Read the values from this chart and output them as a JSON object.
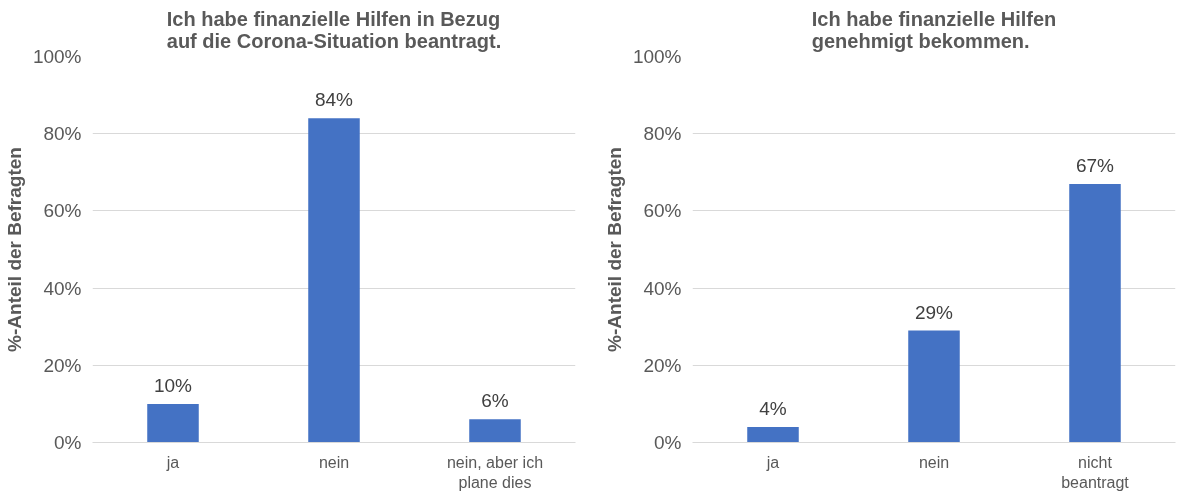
{
  "chart_data": [
    {
      "type": "bar",
      "title": "Ich habe finanzielle Hilfen in Bezug\nauf die Corona-Situation beantragt.",
      "ylabel": "%-Anteil der Befragten",
      "categories": [
        "ja",
        "nein",
        "nein, aber ich\nplane dies"
      ],
      "values": [
        10,
        84,
        6
      ],
      "value_labels": [
        "10%",
        "84%",
        "6%"
      ],
      "color": "#4472c4",
      "ylim": [
        0,
        100
      ],
      "yticks": [
        {
          "value": 0,
          "label": "0%"
        },
        {
          "value": 20,
          "label": "20%"
        },
        {
          "value": 40,
          "label": "40%"
        },
        {
          "value": 60,
          "label": "60%"
        },
        {
          "value": 80,
          "label": "80%"
        },
        {
          "value": 100,
          "label": "100%"
        }
      ],
      "grid": "y"
    },
    {
      "type": "bar",
      "title": "Ich habe finanzielle Hilfen\ngenehmigt bekommen.",
      "ylabel": "%-Anteil der Befragten",
      "categories": [
        "ja",
        "nein",
        "nicht\nbeantragt"
      ],
      "values": [
        4,
        29,
        67
      ],
      "value_labels": [
        "4%",
        "29%",
        "67%"
      ],
      "color": "#4472c4",
      "ylim": [
        0,
        100
      ],
      "yticks": [
        {
          "value": 0,
          "label": "0%"
        },
        {
          "value": 20,
          "label": "20%"
        },
        {
          "value": 40,
          "label": "40%"
        },
        {
          "value": 60,
          "label": "60%"
        },
        {
          "value": 80,
          "label": "80%"
        },
        {
          "value": 100,
          "label": "100%"
        }
      ],
      "grid": "y"
    }
  ]
}
